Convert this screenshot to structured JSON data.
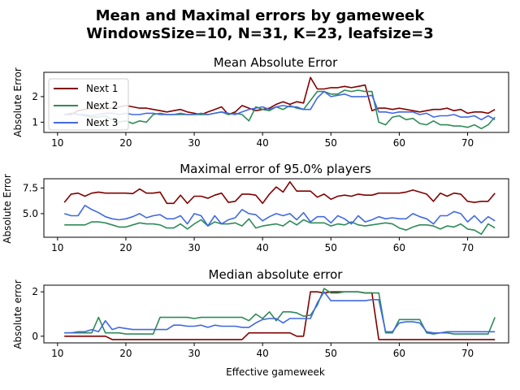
{
  "figure": {
    "title_line1": "Mean and Maximal errors by gameweek",
    "title_line2": "WindowsSize=10, N=31, K=23, leafsize=3"
  },
  "colors": {
    "next1": "#800000",
    "next2": "#2e8b57",
    "next3": "#4169e1"
  },
  "chart_data": [
    {
      "type": "line",
      "title": "Mean Absolute Error",
      "xlabel": "",
      "ylabel": "Absolute Error",
      "xlim": [
        8,
        76
      ],
      "ylim": [
        0.6,
        2.95
      ],
      "xticks": [
        10,
        20,
        30,
        40,
        50,
        60,
        70
      ],
      "yticks": [
        1,
        2
      ],
      "ytick_labels": [
        "1",
        "2"
      ],
      "legend": {
        "placement": "upper-left",
        "entries": [
          "Next 1",
          "Next 2",
          "Next 3"
        ]
      },
      "x_start": 11,
      "series": [
        {
          "name": "Next 1",
          "color": "#800000",
          "values": [
            1.3,
            1.3,
            1.45,
            1.5,
            1.55,
            1.5,
            1.55,
            1.55,
            1.6,
            1.65,
            1.6,
            1.55,
            1.55,
            1.5,
            1.45,
            1.4,
            1.45,
            1.5,
            1.4,
            1.35,
            1.3,
            1.4,
            1.5,
            1.6,
            1.3,
            1.4,
            1.65,
            1.55,
            1.45,
            1.5,
            1.55,
            1.7,
            1.8,
            1.7,
            1.8,
            1.75,
            2.75,
            2.3,
            2.3,
            2.35,
            2.35,
            2.4,
            2.35,
            2.4,
            2.45,
            1.45,
            1.55,
            1.55,
            1.5,
            1.55,
            1.5,
            1.45,
            1.4,
            1.45,
            1.5,
            1.5,
            1.55,
            1.45,
            1.5,
            1.35,
            1.4,
            1.4,
            1.35,
            1.5
          ]
        },
        {
          "name": "Next 2",
          "color": "#2e8b57",
          "values": [
            1.3,
            1.35,
            1.3,
            1.25,
            1.2,
            1.2,
            1.25,
            1.1,
            1.0,
            1.05,
            0.95,
            1.05,
            1.0,
            1.3,
            1.35,
            1.3,
            1.3,
            1.3,
            1.3,
            1.3,
            1.3,
            1.3,
            1.35,
            1.4,
            1.3,
            1.35,
            1.3,
            1.05,
            1.6,
            1.5,
            1.45,
            1.6,
            1.5,
            1.65,
            1.55,
            1.5,
            1.85,
            2.2,
            2.2,
            2.1,
            2.1,
            2.25,
            2.2,
            2.25,
            2.2,
            2.2,
            1.0,
            0.9,
            1.2,
            1.25,
            1.1,
            1.15,
            0.95,
            0.9,
            1.05,
            0.9,
            0.9,
            0.85,
            0.85,
            0.8,
            0.9,
            0.75,
            0.9,
            1.2
          ]
        },
        {
          "name": "Next 3",
          "color": "#4169e1",
          "values": [
            1.3,
            1.35,
            1.3,
            1.3,
            1.25,
            1.3,
            1.35,
            1.35,
            1.3,
            1.35,
            1.3,
            1.3,
            1.35,
            1.35,
            1.3,
            1.3,
            1.3,
            1.35,
            1.3,
            1.3,
            1.35,
            1.3,
            1.35,
            1.4,
            1.35,
            1.3,
            1.4,
            1.5,
            1.55,
            1.6,
            1.5,
            1.6,
            1.65,
            1.6,
            1.6,
            1.5,
            1.5,
            1.95,
            2.2,
            2.0,
            2.05,
            2.1,
            2.0,
            2.0,
            2.0,
            2.05,
            1.4,
            1.4,
            1.35,
            1.4,
            1.4,
            1.4,
            1.3,
            1.35,
            1.2,
            1.25,
            1.25,
            1.3,
            1.2,
            1.2,
            1.25,
            1.1,
            1.25,
            1.1
          ]
        }
      ]
    },
    {
      "type": "line",
      "title": "Maximal error of 95.0% players",
      "xlabel": "",
      "ylabel": "Absolute Error",
      "xlim": [
        8,
        76
      ],
      "ylim": [
        2.7,
        8.4
      ],
      "xticks": [
        10,
        20,
        30,
        40,
        50,
        60,
        70
      ],
      "yticks": [
        5.0,
        7.5
      ],
      "ytick_labels": [
        "5.0",
        "7.5"
      ],
      "x_start": 11,
      "series": [
        {
          "name": "Next 1",
          "color": "#800000",
          "values": [
            6.1,
            6.9,
            7.0,
            6.7,
            7.0,
            7.1,
            7.0,
            7.0,
            7.0,
            7.0,
            6.95,
            7.4,
            7.0,
            7.0,
            7.1,
            6.0,
            6.0,
            6.8,
            6.0,
            6.7,
            6.7,
            6.5,
            6.8,
            7.0,
            6.1,
            6.2,
            6.9,
            6.9,
            6.8,
            6.0,
            6.9,
            7.6,
            7.1,
            8.1,
            7.2,
            7.2,
            7.2,
            6.6,
            6.9,
            6.4,
            6.7,
            6.8,
            6.7,
            6.9,
            6.8,
            6.8,
            7.0,
            7.0,
            7.0,
            7.0,
            7.1,
            7.3,
            7.1,
            6.9,
            6.2,
            7.0,
            6.7,
            7.0,
            6.9,
            6.2,
            6.1,
            6.2,
            6.2,
            7.0
          ]
        },
        {
          "name": "Next 2",
          "color": "#2e8b57",
          "values": [
            3.9,
            3.9,
            3.9,
            3.9,
            4.2,
            4.2,
            4.1,
            3.9,
            3.7,
            3.7,
            3.9,
            4.1,
            4.0,
            4.0,
            3.9,
            3.6,
            3.6,
            4.0,
            3.5,
            4.0,
            4.4,
            3.8,
            4.2,
            4.0,
            4.0,
            4.1,
            3.8,
            4.5,
            3.6,
            3.8,
            3.9,
            4.0,
            3.8,
            4.3,
            3.9,
            4.4,
            4.1,
            4.1,
            4.1,
            3.8,
            4.0,
            3.9,
            4.2,
            3.9,
            3.8,
            3.9,
            4.0,
            4.1,
            4.0,
            3.6,
            3.4,
            3.7,
            3.9,
            3.9,
            3.8,
            3.5,
            3.8,
            3.7,
            4.0,
            3.5,
            3.4,
            3.0,
            4.0,
            3.6
          ]
        },
        {
          "name": "Next 3",
          "color": "#4169e1",
          "values": [
            5.0,
            4.8,
            4.8,
            5.8,
            5.4,
            5.1,
            4.7,
            4.5,
            4.4,
            4.5,
            4.7,
            5.0,
            4.6,
            4.8,
            4.9,
            4.5,
            4.5,
            4.8,
            4.0,
            5.0,
            4.8,
            3.8,
            4.8,
            4.0,
            4.4,
            4.6,
            5.4,
            5.0,
            4.9,
            4.3,
            4.7,
            5.0,
            4.8,
            5.0,
            4.4,
            5.1,
            4.2,
            4.7,
            4.7,
            4.1,
            4.8,
            4.5,
            4.0,
            4.8,
            4.2,
            4.4,
            4.7,
            4.5,
            4.6,
            4.5,
            4.5,
            5.0,
            4.7,
            4.5,
            4.0,
            4.8,
            4.8,
            5.2,
            5.0,
            4.2,
            4.8,
            4.1,
            4.7,
            4.3
          ]
        }
      ]
    },
    {
      "type": "line",
      "title": "Median absolute error",
      "xlabel": "Effective gameweek",
      "ylabel": "Absolute error",
      "xlim": [
        8,
        76
      ],
      "ylim": [
        -0.3,
        2.3
      ],
      "xticks": [
        10,
        20,
        30,
        40,
        50,
        60,
        70
      ],
      "yticks": [
        0,
        2
      ],
      "ytick_labels": [
        "0",
        "2"
      ],
      "x_start": 11,
      "series": [
        {
          "name": "Next 1",
          "color": "#800000",
          "values": [
            0.0,
            0.0,
            0.0,
            0.0,
            0.0,
            0.0,
            0.0,
            -0.15,
            -0.15,
            -0.15,
            -0.15,
            -0.15,
            -0.15,
            -0.15,
            -0.15,
            -0.15,
            -0.15,
            -0.15,
            -0.15,
            -0.15,
            -0.15,
            -0.15,
            -0.15,
            -0.15,
            -0.15,
            -0.15,
            -0.15,
            0.15,
            0.15,
            0.15,
            0.15,
            0.15,
            0.15,
            0.15,
            0.0,
            0.0,
            2.0,
            2.0,
            1.95,
            2.0,
            2.0,
            2.0,
            2.0,
            2.0,
            1.95,
            1.95,
            -0.15,
            -0.15,
            -0.15,
            -0.15,
            -0.15,
            -0.15,
            -0.15,
            -0.15,
            -0.15,
            -0.15,
            -0.15,
            -0.15,
            -0.15,
            -0.15,
            -0.15,
            -0.15,
            -0.15,
            -0.15
          ]
        },
        {
          "name": "Next 2",
          "color": "#2e8b57",
          "values": [
            0.15,
            0.15,
            0.15,
            0.15,
            0.15,
            0.85,
            0.15,
            0.15,
            0.15,
            0.1,
            0.1,
            0.1,
            0.1,
            0.1,
            0.85,
            0.85,
            0.85,
            0.85,
            0.85,
            0.8,
            0.85,
            0.85,
            0.85,
            0.85,
            0.85,
            0.85,
            0.85,
            0.7,
            1.0,
            0.8,
            1.1,
            0.7,
            1.1,
            1.1,
            1.05,
            0.9,
            0.95,
            1.4,
            2.15,
            1.95,
            1.95,
            2.0,
            2.0,
            2.0,
            1.95,
            1.95,
            1.95,
            0.15,
            0.15,
            0.75,
            0.75,
            0.75,
            0.75,
            0.15,
            0.1,
            0.15,
            0.15,
            0.1,
            0.1,
            0.1,
            0.1,
            0.1,
            0.1,
            0.85
          ]
        },
        {
          "name": "Next 3",
          "color": "#4169e1",
          "values": [
            0.15,
            0.15,
            0.2,
            0.2,
            0.3,
            0.2,
            0.7,
            0.3,
            0.4,
            0.35,
            0.3,
            0.3,
            0.3,
            0.3,
            0.3,
            0.3,
            0.5,
            0.5,
            0.45,
            0.45,
            0.5,
            0.4,
            0.5,
            0.45,
            0.45,
            0.45,
            0.4,
            0.4,
            0.6,
            0.75,
            0.8,
            0.8,
            0.6,
            0.8,
            0.8,
            0.8,
            0.8,
            1.5,
            2.0,
            1.6,
            1.6,
            1.6,
            1.6,
            1.6,
            1.6,
            1.65,
            1.65,
            0.2,
            0.2,
            0.6,
            0.65,
            0.65,
            0.6,
            0.2,
            0.15,
            0.15,
            0.2,
            0.2,
            0.2,
            0.2,
            0.2,
            0.2,
            0.2,
            0.2
          ]
        }
      ]
    }
  ]
}
